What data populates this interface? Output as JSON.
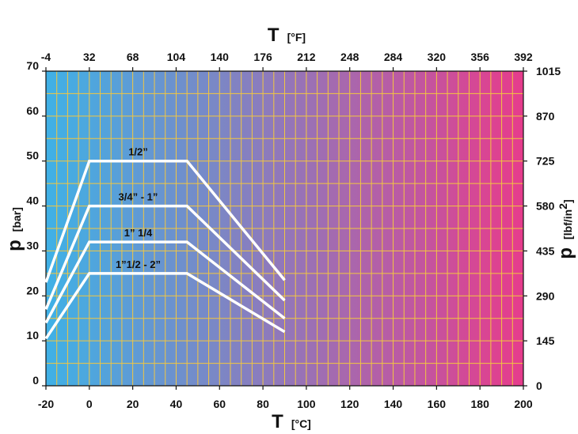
{
  "colors": {
    "gradient_start": "#3fb1e6",
    "gradient_end": "#e63c8c",
    "grid": "#f2c641",
    "series_line": "#ffffff",
    "text": "#111111"
  },
  "chart_data": {
    "type": "line",
    "x_bottom": {
      "symbol": "T",
      "unit": "[°C]",
      "range": [
        -20,
        200
      ],
      "ticks": [
        "-20",
        "0",
        "20",
        "40",
        "60",
        "80",
        "100",
        "120",
        "140",
        "160",
        "180",
        "200"
      ]
    },
    "x_top": {
      "symbol": "T",
      "unit": "[°F]",
      "ticks": [
        "-4",
        "32",
        "68",
        "104",
        "140",
        "176",
        "212",
        "248",
        "284",
        "320",
        "356",
        "392"
      ]
    },
    "y_left": {
      "symbol": "p",
      "unit": "[bar]",
      "range": [
        0,
        70
      ],
      "ticks": [
        "0",
        "10",
        "20",
        "30",
        "40",
        "50",
        "60",
        "70"
      ]
    },
    "y_right": {
      "symbol": "p",
      "unit_base": "[lbf/in",
      "unit_sup": "2",
      "unit_close": "]",
      "ticks": [
        "0",
        "145",
        "290",
        "435",
        "580",
        "725",
        "870",
        "1015"
      ]
    },
    "grid": true,
    "series": [
      {
        "name": "1/2”",
        "points": [
          [
            -20,
            23
          ],
          [
            0,
            50
          ],
          [
            45,
            50
          ],
          [
            90,
            23.5
          ]
        ]
      },
      {
        "name": "3/4” - 1”",
        "points": [
          [
            -20,
            17
          ],
          [
            0,
            40
          ],
          [
            45,
            40
          ],
          [
            90,
            19
          ]
        ]
      },
      {
        "name": "1” 1/4",
        "points": [
          [
            -20,
            14
          ],
          [
            0,
            32
          ],
          [
            45,
            32
          ],
          [
            90,
            15
          ]
        ]
      },
      {
        "name": "1”1/2 - 2”",
        "points": [
          [
            -20,
            10.5
          ],
          [
            0,
            25
          ],
          [
            45,
            25
          ],
          [
            90,
            12
          ]
        ]
      }
    ]
  }
}
